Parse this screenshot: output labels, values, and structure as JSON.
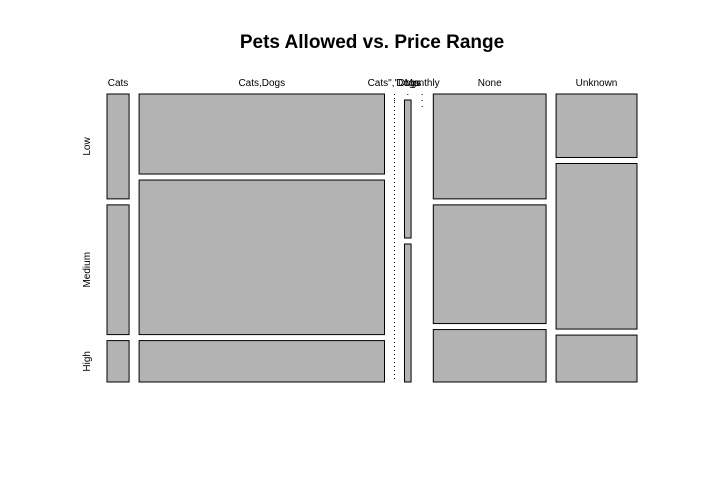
{
  "chart_data": {
    "type": "mosaic",
    "title": "Pets Allowed vs. Price Range",
    "x_variable_categories": [
      "Cats",
      "Cats,Dogs",
      "Cats\",\"Dogs",
      "Dogs",
      "Monthly",
      "None",
      "Unknown"
    ],
    "y_variable_categories": [
      "Low",
      "Medium",
      "High"
    ],
    "column_proportions": [
      0.0446,
      0.4955,
      0.0,
      0.0133,
      0.0045,
      0.2277,
      0.1634
    ],
    "conditional_proportions": {
      "Cats": [
        0.38,
        0.47,
        0.15
      ],
      "Cats,Dogs": [
        0.29,
        0.56,
        0.15
      ],
      "Cats\",\"Dogs": [
        0.0,
        0.0,
        0.0
      ],
      "Dogs": [
        0.0,
        0.5,
        0.5
      ],
      "Monthly": [
        0.0,
        0.0,
        0.0
      ],
      "None": [
        0.38,
        0.43,
        0.19
      ],
      "Unknown": [
        0.23,
        0.6,
        0.17
      ]
    },
    "fill_color": "#b3b3b3",
    "border_color": "#000000"
  }
}
